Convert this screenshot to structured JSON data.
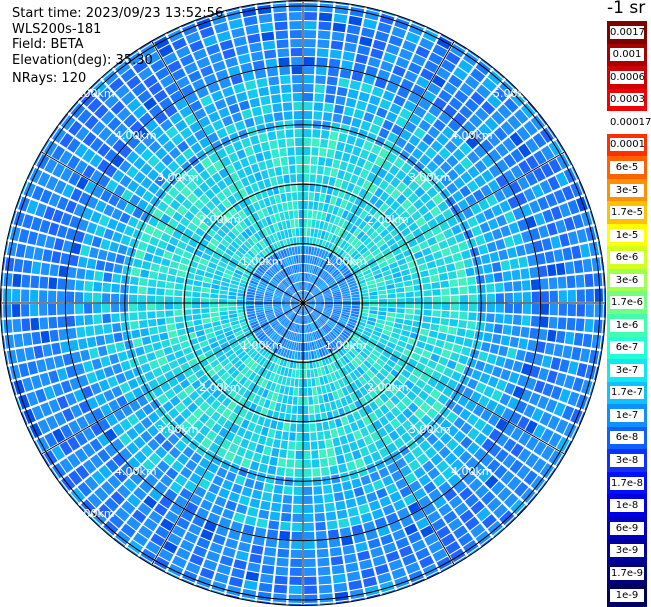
{
  "header": {
    "start_time": "Start time: 2023/09/23 13:52:56",
    "device": "WLS200s-181",
    "field": "Field: BETA",
    "elevation": "Elevation(deg): 35.30",
    "nrays": "NRays: 120"
  },
  "colorbar": {
    "unit": "-1 sr",
    "labels": [
      "0.0017",
      "0.001",
      "0.0006",
      "0.0003",
      "0.00017",
      "0.0001",
      "6e-5",
      "3e-5",
      "1.7e-5",
      "1e-5",
      "6e-6",
      "3e-6",
      "1.7e-6",
      "1e-6",
      "6e-7",
      "3e-7",
      "1.7e-7",
      "1e-7",
      "6e-8",
      "3e-8",
      "1.7e-8",
      "1e-8",
      "6e-9",
      "3e-9",
      "1.7e-9",
      "1e-9"
    ],
    "colors": [
      "#800000",
      "#a80000",
      "#d00000",
      "#f00000",
      "#ffffff",
      "#ff3000",
      "#ff6000",
      "#ff9000",
      "#ffc000",
      "#ffff00",
      "#d0ff20",
      "#a0ff50",
      "#70ff80",
      "#40ffb0",
      "#20ffd8",
      "#10e8f0",
      "#10c0ff",
      "#1090ff",
      "#1060ff",
      "#1030ff",
      "#0010ff",
      "#0000e0",
      "#0000c0",
      "#0000a0",
      "#000080",
      "#000060"
    ]
  },
  "ppi": {
    "ring_labels": [
      "1.00km",
      "2.00km",
      "3.00km",
      "4.00km",
      "5.00km"
    ],
    "rings_km": [
      1,
      2,
      3,
      4,
      5,
      6
    ],
    "nrays": 120,
    "palette": [
      "#1e90ff",
      "#1a78ff",
      "#1e64ff",
      "#10b0ff",
      "#14c8f0",
      "#20d8e0",
      "#30e8d0",
      "#40f0c0",
      "#58f8b0",
      "#0050e8"
    ]
  }
}
